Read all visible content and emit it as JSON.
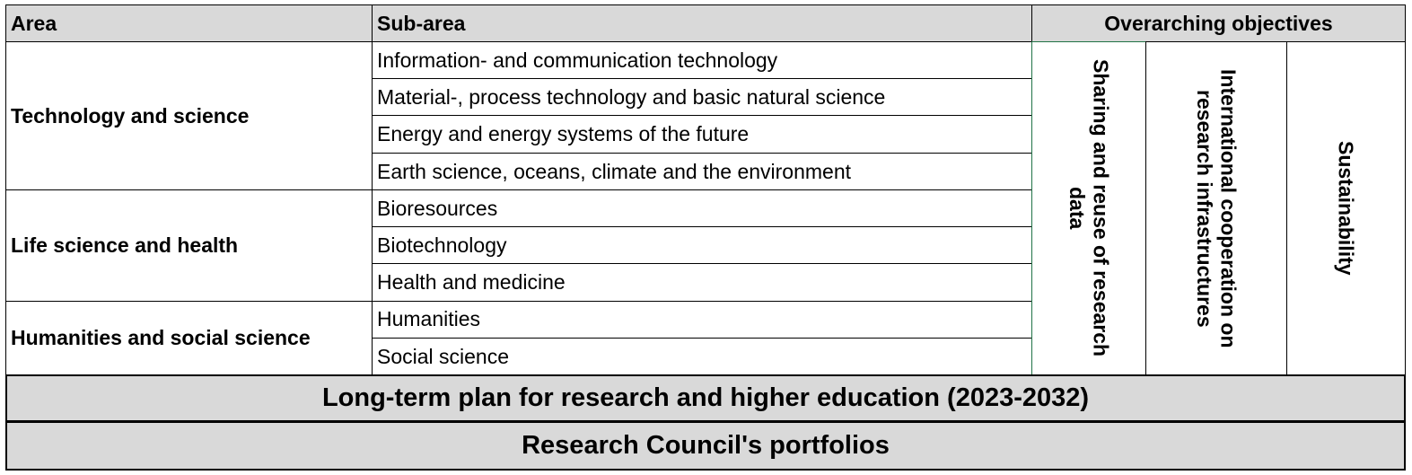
{
  "header": {
    "area": "Area",
    "sub_area": "Sub-area",
    "objectives": "Overarching objectives"
  },
  "areas": [
    {
      "name": "Technology and science",
      "sub_areas": [
        "Information- and communication technology",
        "Material-, process technology and basic natural science",
        "Energy and energy systems of the future",
        "Earth science, oceans, climate and the environment"
      ]
    },
    {
      "name": "Life science and health",
      "sub_areas": [
        "Bioresources",
        "Biotechnology",
        "Health and medicine"
      ]
    },
    {
      "name": "Humanities and social science",
      "sub_areas": [
        "Humanities",
        "Social science"
      ]
    }
  ],
  "objectives": [
    "Sharing and reuse of research data",
    "International cooperation on research infrastructures",
    "Sustainability"
  ],
  "footer": [
    "Long-term plan for research and higher education (2023-2032)",
    "Research Council's portfolios"
  ]
}
